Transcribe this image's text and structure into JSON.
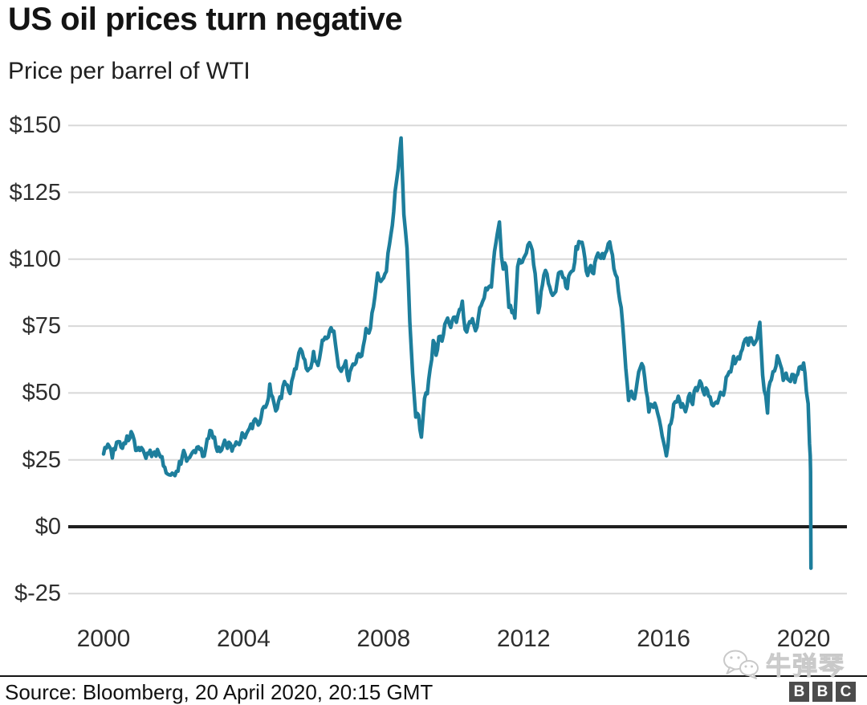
{
  "header": {
    "title": "US oil prices turn negative",
    "subtitle": "Price per barrel of WTI"
  },
  "footer": {
    "source": "Source: Bloomberg, 20 April 2020, 20:15 GMT",
    "watermark_text": "牛弹琴",
    "watermark_icon": "wechat-icon",
    "bbc_letters": [
      "B",
      "B",
      "C"
    ]
  },
  "colors": {
    "line": "#1d7e9c",
    "grid": "#d8d8d8",
    "zero_line": "#1f1f1f",
    "title": "#141414",
    "tick_text": "#2e2e2e",
    "watermark": "#cecece",
    "bbc_block": "#4c4c4c"
  },
  "chart_data": {
    "type": "line",
    "title": "US oil prices turn negative",
    "subtitle": "Price per barrel of WTI",
    "unit": "USD per barrel (WTI)",
    "grid": "horizontal",
    "legend": "none",
    "xlim": [
      1999.8,
      2021.2
    ],
    "ylim": [
      -25,
      150
    ],
    "y_ticks": [
      {
        "label": "$150",
        "value": 150
      },
      {
        "label": "$125",
        "value": 125
      },
      {
        "label": "$100",
        "value": 100
      },
      {
        "label": "$75",
        "value": 75
      },
      {
        "label": "$50",
        "value": 50
      },
      {
        "label": "$25",
        "value": 25
      },
      {
        "label": "$0",
        "value": 0
      },
      {
        "label": "$-25",
        "value": -25
      }
    ],
    "x_ticks": [
      {
        "label": "2000",
        "value": 2000
      },
      {
        "label": "2004",
        "value": 2004
      },
      {
        "label": "2008",
        "value": 2008
      },
      {
        "label": "2012",
        "value": 2012
      },
      {
        "label": "2016",
        "value": 2016
      },
      {
        "label": "2020",
        "value": 2020
      }
    ],
    "series": [
      {
        "name": "WTI crude oil price",
        "color": "#1d7e9c",
        "points": [
          [
            2000.0,
            27.2
          ],
          [
            2000.08,
            29.4
          ],
          [
            2000.17,
            29.9
          ],
          [
            2000.25,
            25.7
          ],
          [
            2000.33,
            28.8
          ],
          [
            2000.42,
            31.8
          ],
          [
            2000.5,
            29.7
          ],
          [
            2000.58,
            31.3
          ],
          [
            2000.67,
            33.9
          ],
          [
            2000.75,
            33.1
          ],
          [
            2000.83,
            34.4
          ],
          [
            2000.92,
            28.5
          ],
          [
            2001.0,
            29.6
          ],
          [
            2001.08,
            29.6
          ],
          [
            2001.17,
            27.2
          ],
          [
            2001.25,
            27.5
          ],
          [
            2001.33,
            28.6
          ],
          [
            2001.42,
            27.6
          ],
          [
            2001.5,
            26.4
          ],
          [
            2001.58,
            27.5
          ],
          [
            2001.67,
            26.2
          ],
          [
            2001.75,
            22.2
          ],
          [
            2001.83,
            19.7
          ],
          [
            2001.92,
            19.3
          ],
          [
            2002.0,
            19.7
          ],
          [
            2002.08,
            20.7
          ],
          [
            2002.17,
            24.4
          ],
          [
            2002.25,
            26.3
          ],
          [
            2002.33,
            27.0
          ],
          [
            2002.42,
            25.5
          ],
          [
            2002.5,
            26.9
          ],
          [
            2002.58,
            28.4
          ],
          [
            2002.67,
            29.7
          ],
          [
            2002.75,
            28.9
          ],
          [
            2002.83,
            26.3
          ],
          [
            2002.92,
            29.4
          ],
          [
            2003.0,
            33.0
          ],
          [
            2003.08,
            35.8
          ],
          [
            2003.17,
            33.5
          ],
          [
            2003.25,
            28.2
          ],
          [
            2003.33,
            28.1
          ],
          [
            2003.42,
            30.7
          ],
          [
            2003.5,
            30.8
          ],
          [
            2003.58,
            31.6
          ],
          [
            2003.67,
            28.3
          ],
          [
            2003.75,
            30.3
          ],
          [
            2003.83,
            31.1
          ],
          [
            2003.92,
            32.2
          ],
          [
            2004.0,
            34.3
          ],
          [
            2004.08,
            34.7
          ],
          [
            2004.17,
            36.8
          ],
          [
            2004.25,
            36.7
          ],
          [
            2004.33,
            40.3
          ],
          [
            2004.42,
            38.0
          ],
          [
            2004.5,
            40.8
          ],
          [
            2004.58,
            44.9
          ],
          [
            2004.67,
            46.0
          ],
          [
            2004.75,
            53.3
          ],
          [
            2004.83,
            48.5
          ],
          [
            2004.92,
            43.3
          ],
          [
            2005.0,
            46.8
          ],
          [
            2005.08,
            48.0
          ],
          [
            2005.17,
            54.3
          ],
          [
            2005.25,
            53.0
          ],
          [
            2005.33,
            49.8
          ],
          [
            2005.42,
            56.4
          ],
          [
            2005.5,
            59.0
          ],
          [
            2005.58,
            65.0
          ],
          [
            2005.67,
            65.5
          ],
          [
            2005.75,
            62.4
          ],
          [
            2005.83,
            58.3
          ],
          [
            2005.92,
            59.4
          ],
          [
            2006.0,
            65.5
          ],
          [
            2006.08,
            61.6
          ],
          [
            2006.17,
            62.9
          ],
          [
            2006.25,
            69.7
          ],
          [
            2006.33,
            70.9
          ],
          [
            2006.42,
            70.9
          ],
          [
            2006.5,
            74.4
          ],
          [
            2006.58,
            73.1
          ],
          [
            2006.67,
            63.9
          ],
          [
            2006.75,
            58.9
          ],
          [
            2006.83,
            59.4
          ],
          [
            2006.92,
            62.0
          ],
          [
            2007.0,
            54.6
          ],
          [
            2007.08,
            59.3
          ],
          [
            2007.17,
            60.6
          ],
          [
            2007.25,
            63.9
          ],
          [
            2007.33,
            63.5
          ],
          [
            2007.42,
            67.5
          ],
          [
            2007.5,
            74.1
          ],
          [
            2007.58,
            72.4
          ],
          [
            2007.67,
            79.9
          ],
          [
            2007.75,
            85.8
          ],
          [
            2007.83,
            94.8
          ],
          [
            2007.92,
            91.7
          ],
          [
            2008.0,
            93.0
          ],
          [
            2008.08,
            95.4
          ],
          [
            2008.17,
            105.6
          ],
          [
            2008.25,
            112.6
          ],
          [
            2008.33,
            125.4
          ],
          [
            2008.42,
            133.9
          ],
          [
            2008.5,
            145.3
          ],
          [
            2008.58,
            116.7
          ],
          [
            2008.67,
            104.1
          ],
          [
            2008.75,
            76.6
          ],
          [
            2008.83,
            57.3
          ],
          [
            2008.92,
            41.0
          ],
          [
            2009.0,
            41.7
          ],
          [
            2009.08,
            33.5
          ],
          [
            2009.17,
            47.9
          ],
          [
            2009.25,
            49.7
          ],
          [
            2009.33,
            59.0
          ],
          [
            2009.42,
            69.6
          ],
          [
            2009.5,
            64.1
          ],
          [
            2009.58,
            71.0
          ],
          [
            2009.67,
            69.4
          ],
          [
            2009.75,
            75.7
          ],
          [
            2009.83,
            78.0
          ],
          [
            2009.92,
            74.5
          ],
          [
            2010.0,
            78.3
          ],
          [
            2010.08,
            76.4
          ],
          [
            2010.17,
            81.2
          ],
          [
            2010.25,
            84.3
          ],
          [
            2010.33,
            73.7
          ],
          [
            2010.42,
            75.3
          ],
          [
            2010.5,
            76.3
          ],
          [
            2010.58,
            75.4
          ],
          [
            2010.67,
            74.6
          ],
          [
            2010.75,
            81.9
          ],
          [
            2010.83,
            84.2
          ],
          [
            2010.92,
            89.2
          ],
          [
            2011.0,
            89.6
          ],
          [
            2011.08,
            89.6
          ],
          [
            2011.17,
            102.9
          ],
          [
            2011.25,
            109.5
          ],
          [
            2011.31,
            113.9
          ],
          [
            2011.37,
            100.9
          ],
          [
            2011.42,
            96.3
          ],
          [
            2011.5,
            97.3
          ],
          [
            2011.58,
            82.0
          ],
          [
            2011.67,
            80.0
          ],
          [
            2011.75,
            78.0
          ],
          [
            2011.83,
            97.2
          ],
          [
            2011.92,
            98.6
          ],
          [
            2012.0,
            100.3
          ],
          [
            2012.08,
            102.3
          ],
          [
            2012.17,
            106.2
          ],
          [
            2012.25,
            103.3
          ],
          [
            2012.33,
            94.7
          ],
          [
            2012.42,
            80.0
          ],
          [
            2012.5,
            87.9
          ],
          [
            2012.58,
            94.1
          ],
          [
            2012.67,
            94.5
          ],
          [
            2012.75,
            89.5
          ],
          [
            2012.83,
            86.5
          ],
          [
            2012.92,
            87.9
          ],
          [
            2013.0,
            94.8
          ],
          [
            2013.08,
            95.3
          ],
          [
            2013.17,
            92.9
          ],
          [
            2013.25,
            89.0
          ],
          [
            2013.33,
            94.8
          ],
          [
            2013.42,
            95.8
          ],
          [
            2013.5,
            104.7
          ],
          [
            2013.58,
            106.6
          ],
          [
            2013.67,
            106.3
          ],
          [
            2013.75,
            100.5
          ],
          [
            2013.83,
            93.9
          ],
          [
            2013.92,
            97.6
          ],
          [
            2014.0,
            94.6
          ],
          [
            2014.08,
            100.8
          ],
          [
            2014.17,
            100.8
          ],
          [
            2014.25,
            102.1
          ],
          [
            2014.33,
            102.2
          ],
          [
            2014.42,
            105.8
          ],
          [
            2014.5,
            103.6
          ],
          [
            2014.58,
            96.5
          ],
          [
            2014.67,
            93.2
          ],
          [
            2014.75,
            84.4
          ],
          [
            2014.83,
            75.8
          ],
          [
            2014.92,
            59.3
          ],
          [
            2015.0,
            47.2
          ],
          [
            2015.08,
            50.6
          ],
          [
            2015.17,
            47.8
          ],
          [
            2015.25,
            54.5
          ],
          [
            2015.33,
            59.3
          ],
          [
            2015.42,
            59.8
          ],
          [
            2015.5,
            50.9
          ],
          [
            2015.58,
            42.9
          ],
          [
            2015.67,
            45.5
          ],
          [
            2015.75,
            46.2
          ],
          [
            2015.83,
            42.4
          ],
          [
            2015.92,
            37.2
          ],
          [
            2016.0,
            31.7
          ],
          [
            2016.08,
            26.5
          ],
          [
            2016.17,
            37.8
          ],
          [
            2016.25,
            41.0
          ],
          [
            2016.33,
            46.7
          ],
          [
            2016.42,
            48.8
          ],
          [
            2016.5,
            44.7
          ],
          [
            2016.58,
            44.7
          ],
          [
            2016.67,
            45.2
          ],
          [
            2016.75,
            49.8
          ],
          [
            2016.83,
            45.7
          ],
          [
            2016.92,
            52.0
          ],
          [
            2017.0,
            52.5
          ],
          [
            2017.08,
            53.5
          ],
          [
            2017.17,
            49.3
          ],
          [
            2017.25,
            51.1
          ],
          [
            2017.33,
            48.5
          ],
          [
            2017.42,
            45.2
          ],
          [
            2017.5,
            46.6
          ],
          [
            2017.58,
            48.0
          ],
          [
            2017.67,
            49.8
          ],
          [
            2017.75,
            51.6
          ],
          [
            2017.83,
            56.6
          ],
          [
            2017.92,
            57.9
          ],
          [
            2018.0,
            63.7
          ],
          [
            2018.08,
            62.2
          ],
          [
            2018.17,
            62.7
          ],
          [
            2018.25,
            66.3
          ],
          [
            2018.33,
            70.0
          ],
          [
            2018.42,
            67.9
          ],
          [
            2018.5,
            70.6
          ],
          [
            2018.58,
            68.1
          ],
          [
            2018.67,
            70.2
          ],
          [
            2018.75,
            76.4
          ],
          [
            2018.83,
            56.7
          ],
          [
            2018.92,
            49.0
          ],
          [
            2018.97,
            42.5
          ],
          [
            2019.0,
            51.6
          ],
          [
            2019.08,
            55.0
          ],
          [
            2019.17,
            58.2
          ],
          [
            2019.25,
            63.9
          ],
          [
            2019.33,
            60.8
          ],
          [
            2019.42,
            54.7
          ],
          [
            2019.5,
            57.4
          ],
          [
            2019.58,
            54.8
          ],
          [
            2019.67,
            56.9
          ],
          [
            2019.75,
            54.0
          ],
          [
            2019.83,
            57.0
          ],
          [
            2019.92,
            59.9
          ],
          [
            2020.0,
            61.2
          ],
          [
            2020.04,
            57.5
          ],
          [
            2020.08,
            50.5
          ],
          [
            2020.13,
            46.0
          ],
          [
            2020.17,
            31.0
          ],
          [
            2020.19,
            26.5
          ],
          [
            2020.2,
            20.5
          ],
          [
            2020.21,
            -15.5
          ]
        ]
      }
    ]
  }
}
